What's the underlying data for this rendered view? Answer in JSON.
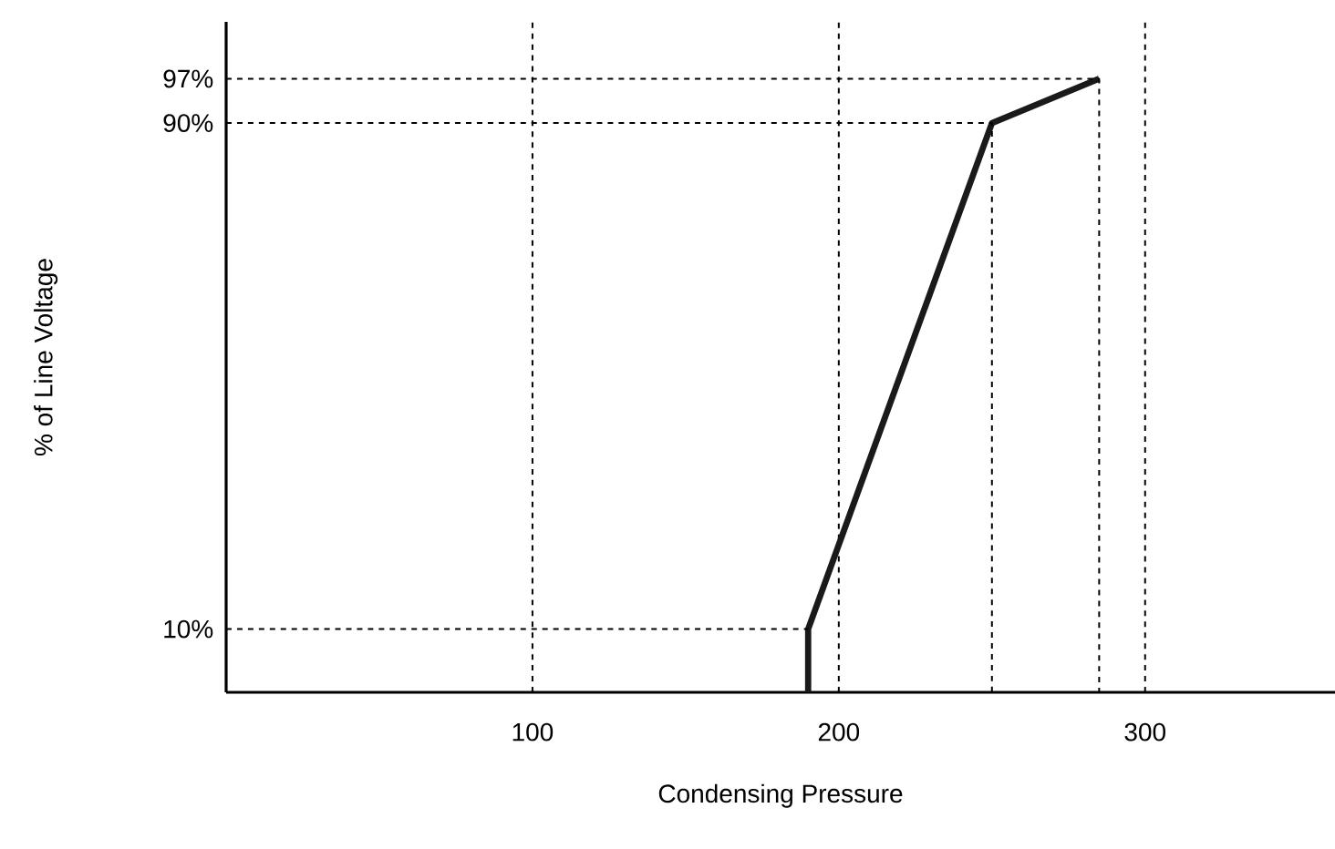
{
  "chart_data": {
    "type": "line",
    "xlabel": "Condensing Pressure",
    "ylabel": "% of Line Voltage",
    "xlim": [
      0,
      362
    ],
    "ylim": [
      0,
      106
    ],
    "xticks": [
      100,
      200,
      300
    ],
    "yticks": [
      {
        "value": 10,
        "label": "10%"
      },
      {
        "value": 90,
        "label": "90%"
      },
      {
        "value": 97,
        "label": "97%"
      }
    ],
    "grid": "x",
    "series": [
      {
        "x": [
          190,
          190,
          250,
          285
        ],
        "values": [
          0,
          10,
          90,
          97
        ],
        "color": "#1a1a1a",
        "line_style": "solid"
      },
      {
        "x": [
          0,
          190
        ],
        "values": [
          10,
          10
        ],
        "color": "#000000",
        "line_style": "dashed"
      },
      {
        "x": [
          0,
          250,
          250
        ],
        "values": [
          90,
          90,
          0
        ],
        "color": "#000000",
        "line_style": "dashed"
      },
      {
        "x": [
          0,
          285,
          285
        ],
        "values": [
          97,
          97,
          0
        ],
        "color": "#000000",
        "line_style": "dashed"
      }
    ]
  }
}
